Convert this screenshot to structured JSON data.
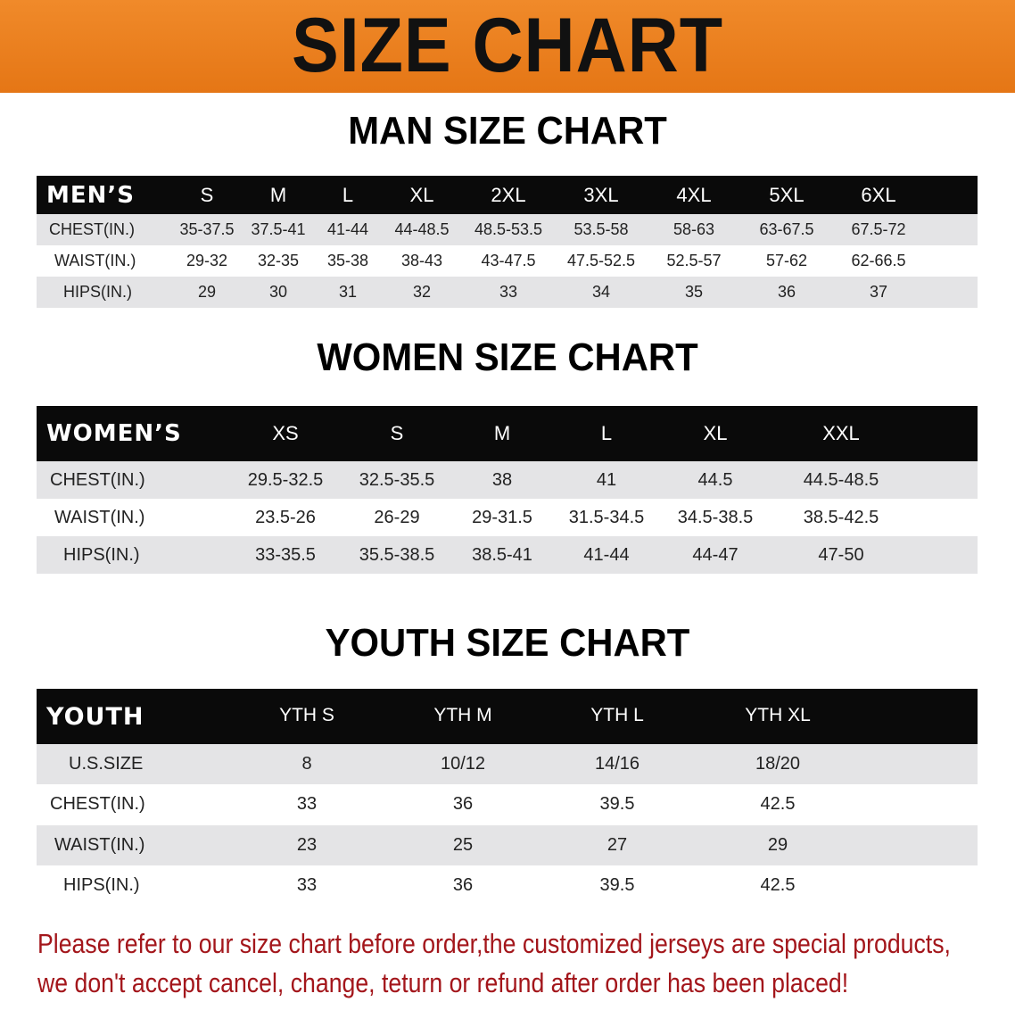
{
  "banner": {
    "title": "SIZE CHART",
    "color": "#e87d1e"
  },
  "men": {
    "title": "MAN SIZE CHART",
    "header_label": "MEN’S",
    "sizes": [
      "S",
      "M",
      "L",
      "XL",
      "2XL",
      "3XL",
      "4XL",
      "5XL",
      "6XL"
    ],
    "rows": [
      {
        "label": "CHEST(IN.)",
        "values": [
          "35-37.5",
          "37.5-41",
          "41-44",
          "44-48.5",
          "48.5-53.5",
          "53.5-58",
          "58-63",
          "63-67.5",
          "67.5-72"
        ]
      },
      {
        "label": "WAIST(IN.)",
        "values": [
          "29-32",
          "32-35",
          "35-38",
          "38-43",
          "43-47.5",
          "47.5-52.5",
          "52.5-57",
          "57-62",
          "62-66.5"
        ]
      },
      {
        "label": "HIPS(IN.)",
        "values": [
          "29",
          "30",
          "31",
          "32",
          "33",
          "34",
          "35",
          "36",
          "37"
        ]
      }
    ]
  },
  "women": {
    "title": "WOMEN SIZE CHART",
    "header_label": "WOMEN’S",
    "sizes": [
      "XS",
      "S",
      "M",
      "L",
      "XL",
      "XXL"
    ],
    "rows": [
      {
        "label": "CHEST(IN.)",
        "values": [
          "29.5-32.5",
          "32.5-35.5",
          "38",
          "41",
          "44.5",
          "44.5-48.5"
        ]
      },
      {
        "label": "WAIST(IN.)",
        "values": [
          "23.5-26",
          "26-29",
          "29-31.5",
          "31.5-34.5",
          "34.5-38.5",
          "38.5-42.5"
        ]
      },
      {
        "label": "HIPS(IN.)",
        "values": [
          "33-35.5",
          "35.5-38.5",
          "38.5-41",
          "41-44",
          "44-47",
          "47-50"
        ]
      }
    ]
  },
  "youth": {
    "title": "YOUTH SIZE CHART",
    "header_label": "YOUTH",
    "sizes": [
      "YTH S",
      "YTH M",
      "YTH L",
      "YTH XL"
    ],
    "rows": [
      {
        "label": "U.S.SIZE",
        "values": [
          "8",
          "10/12",
          "14/16",
          "18/20"
        ]
      },
      {
        "label": "CHEST(IN.)",
        "values": [
          "33",
          "36",
          "39.5",
          "42.5"
        ]
      },
      {
        "label": "WAIST(IN.)",
        "values": [
          "23",
          "25",
          "27",
          "29"
        ]
      },
      {
        "label": "HIPS(IN.)",
        "values": [
          "33",
          "36",
          "39.5",
          "42.5"
        ]
      }
    ]
  },
  "note": {
    "line1": "Please refer to our size chart before order,the customized jerseys are special products,",
    "line2": "we don't accept cancel, change, teturn or refund after order has been placed!",
    "color": "#a3161b"
  }
}
